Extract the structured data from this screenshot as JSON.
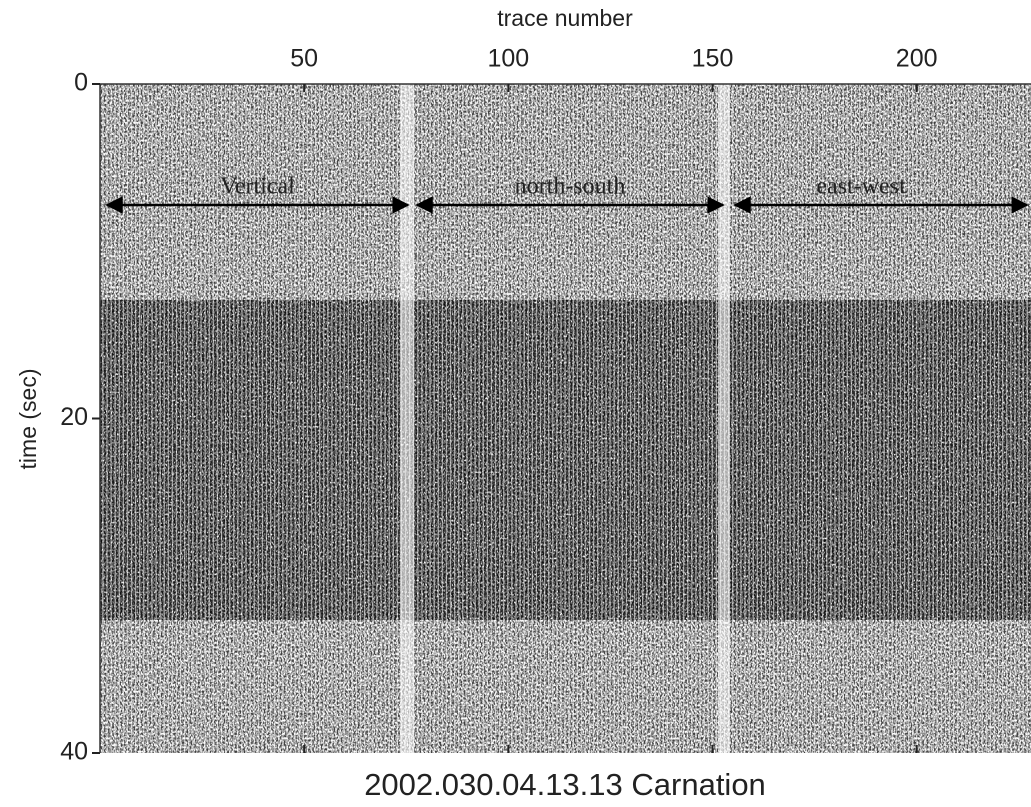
{
  "chart_data": {
    "type": "record-section",
    "title": "2002.030.04.13.13 Carnation",
    "x_label": "trace number",
    "y_label": "time (sec)",
    "xlim": [
      0,
      228
    ],
    "xticks": [
      50,
      100,
      150,
      200
    ],
    "ylim": [
      0,
      40
    ],
    "yticks": [
      0,
      20,
      40
    ],
    "y_inverted": true,
    "annotations": [
      "Vertical",
      "north-south",
      "east-west"
    ]
  }
}
